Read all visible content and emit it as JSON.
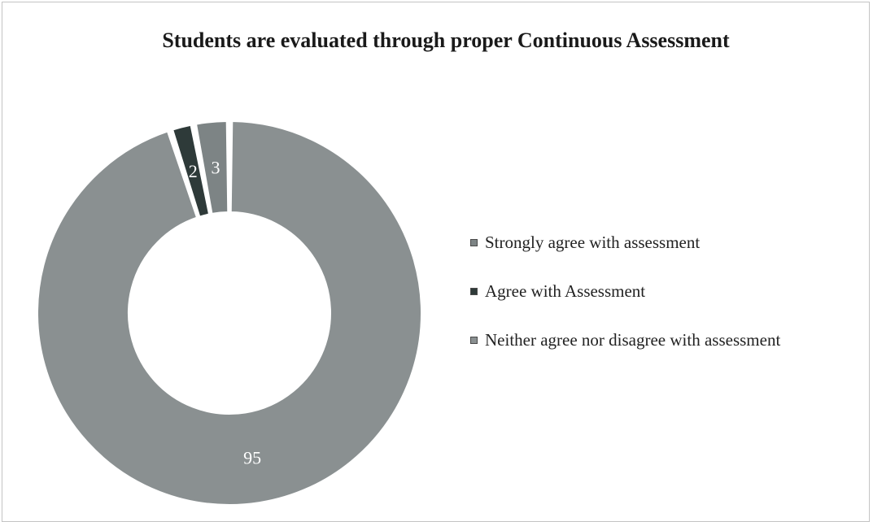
{
  "chart_data": {
    "type": "pie",
    "title": "Students are evaluated through proper Continuous Assessment",
    "categories": [
      "Strongly agree with assessment",
      "Agree with Assessment",
      "Neither agree nor disagree with assessment"
    ],
    "values": [
      3,
      2,
      95
    ],
    "data_labels": [
      "3",
      "2",
      "95"
    ],
    "colors": [
      "#7d8485",
      "#2e3a39",
      "#8a9091"
    ],
    "legend": "right"
  }
}
